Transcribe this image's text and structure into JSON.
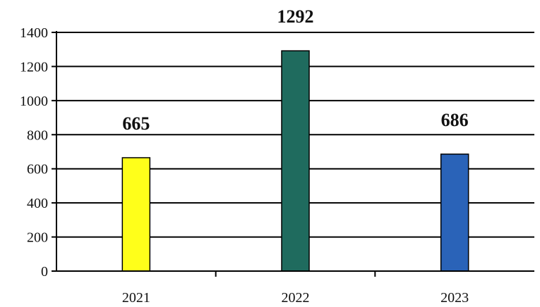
{
  "chart_data": {
    "type": "bar",
    "categories": [
      "2021",
      "2022",
      "2023"
    ],
    "values": [
      665,
      1292,
      686
    ],
    "data_labels": [
      "665",
      "1292",
      "686"
    ],
    "colors": [
      "#ffff1a",
      "#1f6b5e",
      "#2a63b8"
    ],
    "ylim": [
      0,
      1400
    ],
    "yticks": [
      0,
      200,
      400,
      600,
      800,
      1000,
      1200,
      1400
    ],
    "grid": true
  }
}
